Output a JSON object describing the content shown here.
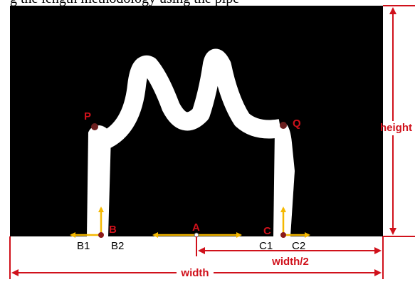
{
  "caption": "g the length methodology using the pipe",
  "points": {
    "P": "P",
    "Q": "Q",
    "A": "A",
    "B": "B",
    "C": "C"
  },
  "sub_points": {
    "B1": "B1",
    "B2": "B2",
    "C1": "C1",
    "C2": "C2"
  },
  "dimensions": {
    "height": "height",
    "half_width": "width/2",
    "width": "width"
  }
}
